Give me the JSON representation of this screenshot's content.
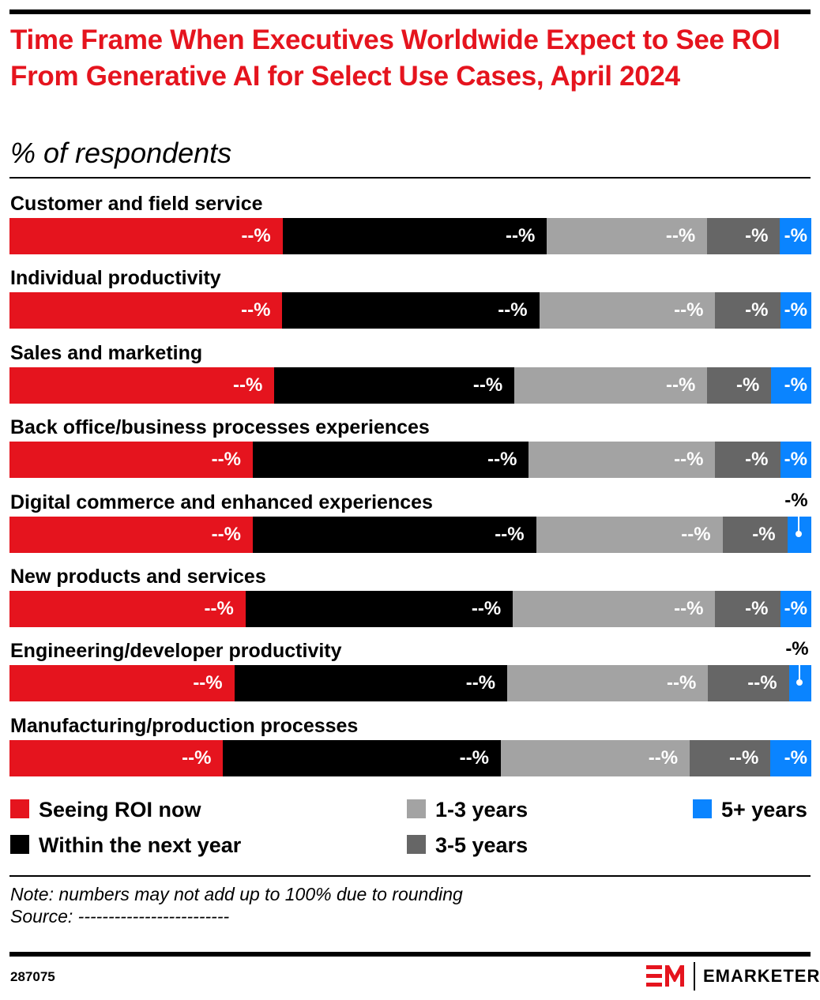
{
  "title": "Time Frame When Executives Worldwide Expect to See ROI From Generative AI for Select Use Cases, April 2024",
  "subtitle": "% of respondents",
  "chart_data": {
    "type": "bar",
    "orientation": "horizontal",
    "stacked": true,
    "title": "Time Frame When Executives Worldwide Expect to See ROI From Generative AI for Select Use Cases, April 2024",
    "subtitle": "% of respondents",
    "categories": [
      "Customer and field service",
      "Individual productivity",
      "Sales and marketing",
      "Back office/business processes experiences",
      "Digital commerce and enhanced experiences",
      "New products and services",
      "Engineering/developer productivity",
      "Manufacturing/production processes"
    ],
    "series": [
      {
        "name": "Seeing ROI now",
        "color": "#e5141e",
        "values": [
          34.1,
          34.1,
          33.1,
          30.4,
          30.4,
          29.5,
          28.1,
          26.7
        ],
        "labels": [
          "--%",
          "--%",
          "--%",
          "--%",
          "--%",
          "--%",
          "--%",
          "--%"
        ]
      },
      {
        "name": "Within the next year",
        "color": "#000000",
        "values": [
          33.0,
          32.1,
          30.0,
          34.5,
          35.4,
          33.4,
          34.1,
          34.7
        ],
        "labels": [
          "--%",
          "--%",
          "--%",
          "--%",
          "--%",
          "--%",
          "--%",
          "--%"
        ]
      },
      {
        "name": "1-3 years",
        "color": "#a3a3a3",
        "values": [
          20.0,
          22.0,
          24.1,
          23.3,
          23.3,
          25.3,
          25.1,
          23.6
        ],
        "labels": [
          "--%",
          "--%",
          "--%",
          "--%",
          "--%",
          "--%",
          "--%",
          "--%"
        ]
      },
      {
        "name": "3-5 years",
        "color": "#666666",
        "values": [
          9.1,
          8.1,
          8.0,
          8.1,
          8.1,
          8.1,
          10.1,
          10.1
        ],
        "labels": [
          "-%",
          "-%",
          "-%",
          "-%",
          "-%",
          "-%",
          "--%",
          "--%"
        ]
      },
      {
        "name": "5+ years",
        "color": "#0a84ff",
        "values": [
          3.8,
          3.8,
          4.9,
          3.8,
          2.9,
          3.8,
          2.7,
          5.0
        ],
        "labels": [
          "-%",
          "-%",
          "-%",
          "-%",
          "-%",
          "-%",
          "-%",
          "-%"
        ]
      }
    ],
    "xlim": [
      0,
      100
    ],
    "legend_position": "bottom",
    "grid": false
  },
  "legend": [
    {
      "label": "Seeing ROI now",
      "color": "#e5141e"
    },
    {
      "label": "Within the next year",
      "color": "#000000"
    },
    {
      "label": "1-3 years",
      "color": "#a3a3a3"
    },
    {
      "label": "3-5 years",
      "color": "#666666"
    },
    {
      "label": "5+ years",
      "color": "#0a84ff"
    }
  ],
  "note": "Note: numbers may not add up to 100% due to rounding",
  "source": "Source: -------------------------",
  "chart_id": "287075",
  "brand": "EMARKETER"
}
